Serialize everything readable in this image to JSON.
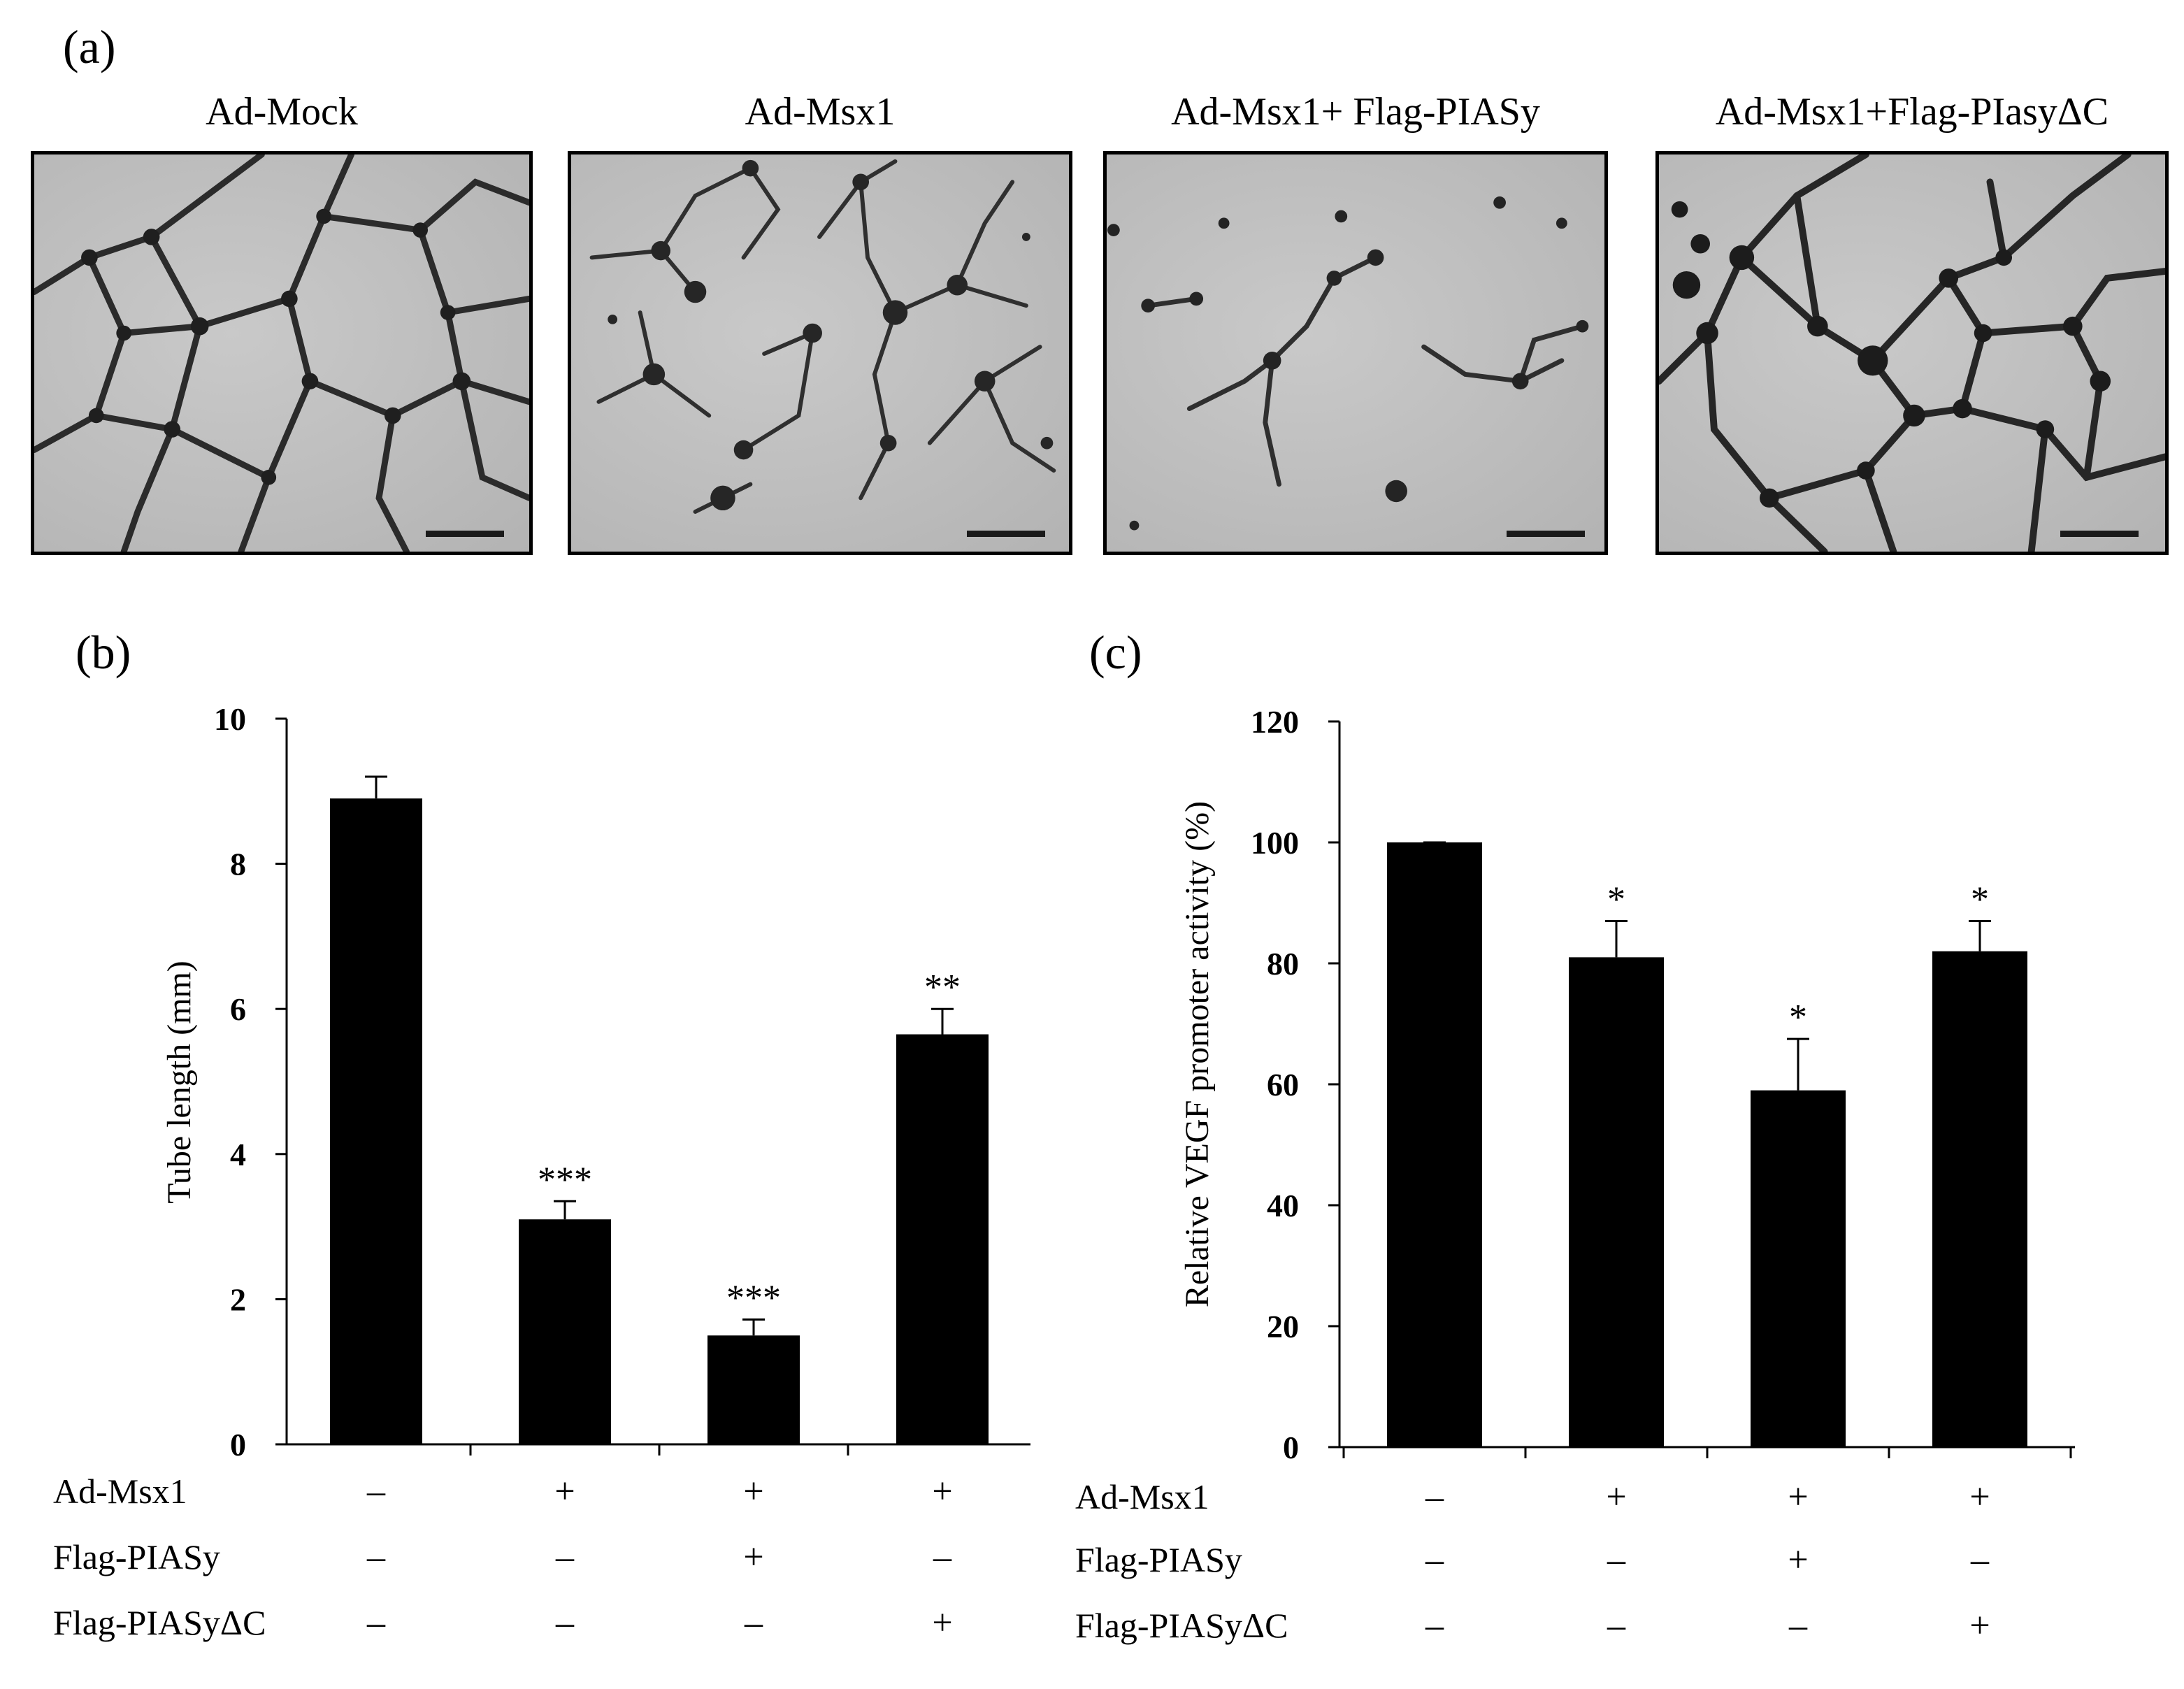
{
  "panel_a": {
    "letter": "(a)",
    "images": [
      {
        "title": "Ad-Mock"
      },
      {
        "title": "Ad-Msx1"
      },
      {
        "title": "Ad-Msx1+ Flag-PIASy"
      },
      {
        "title": "Ad-Msx1+Flag-PIasyΔC"
      }
    ]
  },
  "panel_b": {
    "letter": "(b)"
  },
  "panel_c": {
    "letter": "(c)"
  },
  "chart_data": [
    {
      "type": "bar",
      "panel": "(b)",
      "ylabel": "Tube length (mm)",
      "ylim": [
        0,
        10
      ],
      "yticks": [
        0,
        2,
        4,
        6,
        8,
        10
      ],
      "values": [
        8.9,
        3.1,
        1.5,
        5.65
      ],
      "errors": [
        0.3,
        0.25,
        0.22,
        0.35
      ],
      "significance": [
        "",
        "***",
        "***",
        "**"
      ],
      "bar_color": "#000000",
      "conditions": [
        {
          "label": "Ad-Msx1",
          "symbols": [
            "–",
            "+",
            "+",
            "+"
          ]
        },
        {
          "label": "Flag-PIASy",
          "symbols": [
            "–",
            "–",
            "+",
            "–"
          ]
        },
        {
          "label": "Flag-PIASyΔC",
          "symbols": [
            "–",
            "–",
            "–",
            "+"
          ]
        }
      ]
    },
    {
      "type": "bar",
      "panel": "(c)",
      "ylabel": "Relative VEGF promoter activity (%)",
      "ylim": [
        0,
        120
      ],
      "yticks": [
        0,
        20,
        40,
        60,
        80,
        100,
        120
      ],
      "values": [
        100,
        81,
        59,
        82
      ],
      "errors": [
        0,
        6,
        8.5,
        5
      ],
      "significance": [
        "",
        "*",
        "*",
        "*"
      ],
      "bar_color": "#000000",
      "conditions": [
        {
          "label": "Ad-Msx1",
          "symbols": [
            "–",
            "+",
            "+",
            "+"
          ]
        },
        {
          "label": "Flag-PIASy",
          "symbols": [
            "–",
            "–",
            "+",
            "–"
          ]
        },
        {
          "label": "Flag-PIASyΔC",
          "symbols": [
            "–",
            "–",
            "–",
            "+"
          ]
        }
      ]
    }
  ]
}
